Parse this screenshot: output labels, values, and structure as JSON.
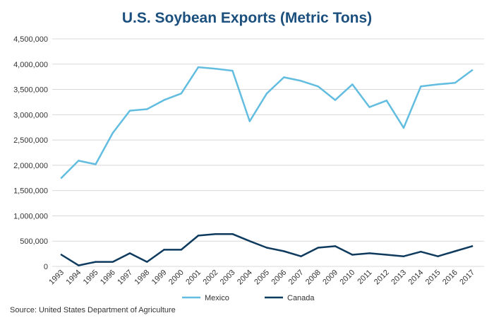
{
  "title": "U.S. Soybean Exports (Metric Tons)",
  "source": "Source: United States Department of Agriculture",
  "colors": {
    "mexico": "#62bde0",
    "canada": "#0e3a5e",
    "grid": "#d8d8d8",
    "title": "#1b4f7d"
  },
  "chart_data": {
    "type": "line",
    "title": "U.S. Soybean Exports (Metric Tons)",
    "xlabel": "",
    "ylabel": "",
    "ylim": [
      0,
      4500000
    ],
    "grid": true,
    "legend_position": "bottom-center",
    "y_ticks": [
      0,
      500000,
      1000000,
      1500000,
      2000000,
      2500000,
      3000000,
      3500000,
      4000000,
      4500000
    ],
    "y_tick_labels": [
      "0",
      "500,000",
      "1,000,000",
      "1,500,000",
      "2,000,000",
      "2,500,000",
      "3,000,000",
      "3,500,000",
      "4,000,000",
      "4,500,000"
    ],
    "categories": [
      "1993",
      "1994",
      "1995",
      "1996",
      "1997",
      "1998",
      "1999",
      "2000",
      "2001",
      "2002",
      "2003",
      "2004",
      "2005",
      "2006",
      "2007",
      "2008",
      "2009",
      "2010",
      "2011",
      "2012",
      "2013",
      "2014",
      "2015",
      "2016",
      "2017"
    ],
    "series": [
      {
        "name": "Mexico",
        "color": "#62bde0",
        "values": [
          1750000,
          2090000,
          2020000,
          2640000,
          3080000,
          3110000,
          3290000,
          3420000,
          3940000,
          3910000,
          3870000,
          2870000,
          3420000,
          3740000,
          3670000,
          3560000,
          3290000,
          3600000,
          3150000,
          3280000,
          2740000,
          3560000,
          3600000,
          3630000,
          3880000
        ]
      },
      {
        "name": "Canada",
        "color": "#0e3a5e",
        "values": [
          230000,
          20000,
          90000,
          90000,
          260000,
          90000,
          330000,
          330000,
          610000,
          640000,
          640000,
          500000,
          370000,
          300000,
          200000,
          370000,
          400000,
          230000,
          260000,
          230000,
          200000,
          290000,
          200000,
          300000,
          400000
        ]
      }
    ]
  }
}
